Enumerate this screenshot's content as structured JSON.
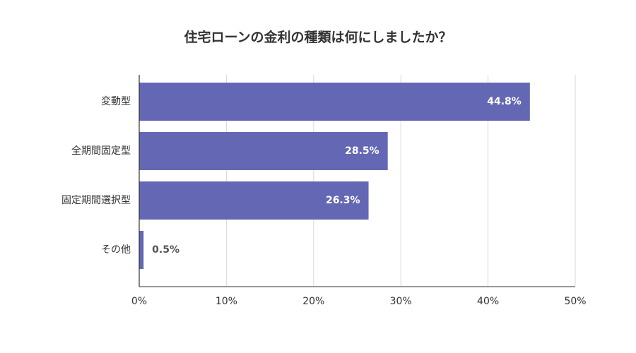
{
  "chart_data": {
    "type": "bar",
    "orientation": "horizontal",
    "title": "住宅ローンの金利の種類は何にしましたか？",
    "categories": [
      "変動型",
      "全期間固定型",
      "固定期間選択型",
      "その他"
    ],
    "values": [
      44.8,
      28.5,
      26.3,
      0.5
    ],
    "value_labels": [
      "44.8%",
      "28.5%",
      "26.3%",
      "0.5%"
    ],
    "xlim": [
      0,
      50
    ],
    "x_ticks": [
      0,
      10,
      20,
      30,
      40,
      50
    ],
    "x_tick_labels": [
      "0%",
      "10%",
      "20%",
      "30%",
      "40%",
      "50%"
    ],
    "grid": true,
    "legend": "none",
    "bar_color": "#6468b4",
    "grid_color": "#d9d9d9",
    "axis_color": "#333333"
  }
}
